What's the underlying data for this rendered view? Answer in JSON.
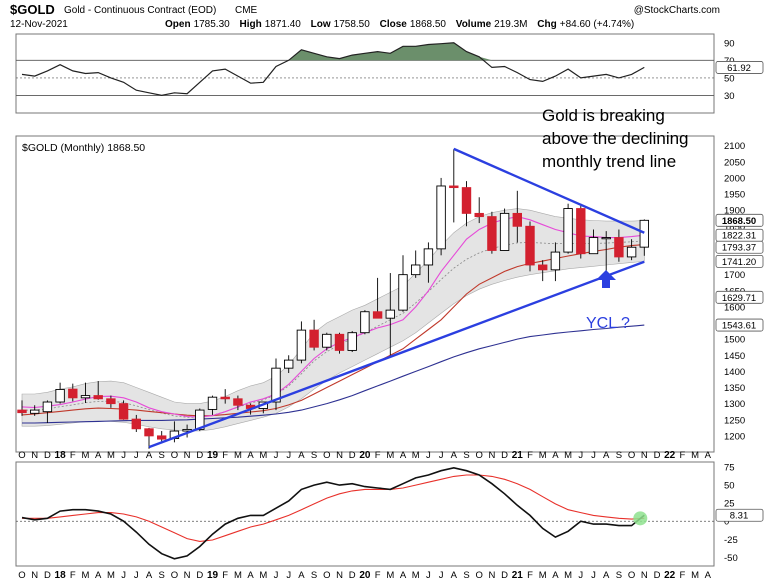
{
  "header": {
    "symbol": "$GOLD",
    "name": "Gold - Continuous Contract (EOD)",
    "exchange": "CME",
    "date": "12-Nov-2021",
    "open_label": "Open",
    "open": "1785.30",
    "high_label": "High",
    "high": "1871.40",
    "low_label": "Low",
    "low": "1758.50",
    "close_label": "Close",
    "close": "1868.50",
    "volume_label": "Volume",
    "volume": "219.3M",
    "chg_label": "Chg",
    "chg": "+84.60 (+4.74%)",
    "watermark": "@StockCharts.com"
  },
  "colors": {
    "up_candle": "#ffffff",
    "down_candle": "#d3202f",
    "ma_short": "#e64ad8",
    "ma_mid": "#c0392b",
    "ma_long": "#2e3192",
    "trendline": "#2b3fe0",
    "rsi_fill_high": "#6b8f6b",
    "rsi_fill_low": "#a86a6a",
    "macd": "#111111",
    "macd_signal": "#e8312b",
    "annotation": "#2b3fe0"
  },
  "chart_data": [
    {
      "type": "line",
      "panel": "rsi",
      "x": [
        "Oct-17",
        "Nov-17",
        "Dec-17",
        "Jan-18",
        "Feb-18",
        "Mar-18",
        "Apr-18",
        "May-18",
        "Jun-18",
        "Jul-18",
        "Aug-18",
        "Sep-18",
        "Oct-18",
        "Nov-18",
        "Dec-18",
        "Jan-19",
        "Feb-19",
        "Mar-19",
        "Apr-19",
        "May-19",
        "Jun-19",
        "Jul-19",
        "Aug-19",
        "Sep-19",
        "Oct-19",
        "Nov-19",
        "Dec-19",
        "Jan-20",
        "Feb-20",
        "Mar-20",
        "Apr-20",
        "May-20",
        "Jun-20",
        "Jul-20",
        "Aug-20",
        "Sep-20",
        "Oct-20",
        "Nov-20",
        "Dec-20",
        "Jan-21",
        "Feb-21",
        "Mar-21",
        "Apr-21",
        "May-21",
        "Jun-21",
        "Jul-21",
        "Aug-21",
        "Sep-21",
        "Oct-21",
        "Nov-21"
      ],
      "values": [
        54,
        52,
        58,
        65,
        58,
        55,
        56,
        50,
        45,
        36,
        33,
        30,
        33,
        32,
        45,
        58,
        60,
        52,
        44,
        45,
        63,
        70,
        82,
        78,
        74,
        72,
        76,
        78,
        80,
        78,
        86,
        86,
        88,
        89,
        90,
        80,
        74,
        62,
        63,
        56,
        48,
        46,
        52,
        60,
        50,
        52,
        54,
        50,
        54,
        61.92
      ],
      "ticks": [
        "90",
        "70",
        "50",
        "30"
      ],
      "ylim": [
        10,
        100
      ],
      "last_value": "61.92"
    },
    {
      "type": "candlestick",
      "title": "$GOLD (Monthly) 1868.50",
      "x": [
        "Oct-17",
        "Nov-17",
        "Dec-17",
        "Jan-18",
        "Feb-18",
        "Mar-18",
        "Apr-18",
        "May-18",
        "Jun-18",
        "Jul-18",
        "Aug-18",
        "Sep-18",
        "Oct-18",
        "Nov-18",
        "Dec-18",
        "Jan-19",
        "Feb-19",
        "Mar-19",
        "Apr-19",
        "May-19",
        "Jun-19",
        "Jul-19",
        "Aug-19",
        "Sep-19",
        "Oct-19",
        "Nov-19",
        "Dec-19",
        "Jan-20",
        "Feb-20",
        "Mar-20",
        "Apr-20",
        "May-20",
        "Jun-20",
        "Jul-20",
        "Aug-20",
        "Sep-20",
        "Oct-20",
        "Nov-20",
        "Dec-20",
        "Jan-21",
        "Feb-21",
        "Mar-21",
        "Apr-21",
        "May-21",
        "Jun-21",
        "Jul-21",
        "Aug-21",
        "Sep-21",
        "Oct-21",
        "Nov-21"
      ],
      "open": [
        1280,
        1270,
        1275,
        1305,
        1345,
        1318,
        1325,
        1315,
        1300,
        1252,
        1222,
        1200,
        1192,
        1215,
        1220,
        1282,
        1320,
        1315,
        1295,
        1285,
        1305,
        1410,
        1435,
        1528,
        1475,
        1515,
        1465,
        1520,
        1585,
        1565,
        1590,
        1700,
        1730,
        1780,
        1975,
        1970,
        1890,
        1880,
        1775,
        1890,
        1850,
        1730,
        1715,
        1770,
        1905,
        1765,
        1815,
        1815,
        1755,
        1785.3
      ],
      "high": [
        1310,
        1295,
        1310,
        1365,
        1362,
        1365,
        1370,
        1325,
        1310,
        1265,
        1225,
        1215,
        1245,
        1235,
        1285,
        1325,
        1345,
        1325,
        1300,
        1305,
        1440,
        1450,
        1555,
        1560,
        1520,
        1520,
        1525,
        1590,
        1690,
        1705,
        1760,
        1775,
        1800,
        2000,
        2090,
        1990,
        1940,
        1895,
        1905,
        1960,
        1865,
        1745,
        1800,
        1920,
        1920,
        1840,
        1835,
        1840,
        1810,
        1871.4
      ],
      "low": [
        1262,
        1262,
        1240,
        1300,
        1307,
        1302,
        1312,
        1287,
        1250,
        1212,
        1160,
        1182,
        1180,
        1195,
        1215,
        1265,
        1300,
        1280,
        1266,
        1270,
        1280,
        1395,
        1425,
        1465,
        1465,
        1455,
        1460,
        1515,
        1565,
        1450,
        1585,
        1690,
        1675,
        1760,
        1862,
        1850,
        1860,
        1765,
        1775,
        1800,
        1710,
        1680,
        1680,
        1765,
        1750,
        1765,
        1680,
        1740,
        1745,
        1758.5
      ],
      "close": [
        1272,
        1280,
        1305,
        1344,
        1318,
        1325,
        1315,
        1300,
        1252,
        1222,
        1200,
        1190,
        1215,
        1220,
        1280,
        1320,
        1315,
        1295,
        1285,
        1305,
        1410,
        1435,
        1528,
        1475,
        1515,
        1465,
        1520,
        1585,
        1565,
        1590,
        1700,
        1730,
        1780,
        1975,
        1970,
        1890,
        1880,
        1775,
        1890,
        1850,
        1730,
        1715,
        1770,
        1905,
        1765,
        1815,
        1815,
        1755,
        1785,
        1868.5
      ],
      "ma_short": [
        1290,
        1288,
        1292,
        1297,
        1305,
        1314,
        1322,
        1323,
        1318,
        1305,
        1287,
        1275,
        1268,
        1260,
        1258,
        1263,
        1275,
        1290,
        1305,
        1315,
        1330,
        1360,
        1400,
        1440,
        1470,
        1490,
        1505,
        1520,
        1535,
        1545,
        1560,
        1600,
        1650,
        1710,
        1760,
        1810,
        1840,
        1860,
        1872,
        1880,
        1870,
        1855,
        1840,
        1830,
        1820,
        1818,
        1815,
        1815,
        1818,
        1822.31
      ],
      "ma_mid": [
        1265,
        1268,
        1272,
        1276,
        1280,
        1284,
        1286,
        1285,
        1283,
        1280,
        1276,
        1272,
        1268,
        1264,
        1262,
        1263,
        1266,
        1270,
        1274,
        1278,
        1285,
        1296,
        1310,
        1330,
        1350,
        1370,
        1390,
        1410,
        1430,
        1450,
        1470,
        1500,
        1530,
        1560,
        1600,
        1640,
        1670,
        1690,
        1710,
        1725,
        1735,
        1742,
        1750,
        1758,
        1765,
        1772,
        1778,
        1785,
        1790,
        1793.37
      ],
      "ma_long": [
        1240,
        1240,
        1241,
        1242,
        1243,
        1244,
        1245,
        1246,
        1247,
        1248,
        1248,
        1248,
        1249,
        1250,
        1252,
        1254,
        1256,
        1258,
        1261,
        1264,
        1268,
        1273,
        1280,
        1290,
        1300,
        1312,
        1325,
        1340,
        1355,
        1370,
        1385,
        1400,
        1415,
        1430,
        1445,
        1458,
        1470,
        1480,
        1490,
        1500,
        1508,
        1513,
        1518,
        1522,
        1526,
        1530,
        1533,
        1537,
        1540,
        1543.61
      ],
      "band_upper": [
        1330,
        1330,
        1335,
        1345,
        1352,
        1362,
        1368,
        1370,
        1365,
        1350,
        1335,
        1320,
        1305,
        1300,
        1300,
        1308,
        1322,
        1340,
        1355,
        1365,
        1385,
        1420,
        1470,
        1520,
        1550,
        1570,
        1590,
        1605,
        1625,
        1645,
        1665,
        1705,
        1745,
        1790,
        1830,
        1860,
        1880,
        1892,
        1900,
        1905,
        1900,
        1890,
        1880,
        1875,
        1870,
        1868,
        1866,
        1866,
        1866,
        1868
      ],
      "band_lower": [
        1230,
        1230,
        1232,
        1236,
        1240,
        1244,
        1246,
        1245,
        1242,
        1236,
        1228,
        1222,
        1218,
        1215,
        1215,
        1220,
        1228,
        1238,
        1248,
        1258,
        1270,
        1290,
        1315,
        1345,
        1372,
        1395,
        1415,
        1435,
        1455,
        1475,
        1495,
        1520,
        1550,
        1580,
        1610,
        1635,
        1655,
        1670,
        1682,
        1692,
        1700,
        1706,
        1712,
        1718,
        1722,
        1726,
        1730,
        1734,
        1738,
        1741
      ],
      "trendlines": [
        {
          "from": [
            "Aug-18",
            1165
          ],
          "to": [
            "Nov-21",
            1740
          ]
        },
        {
          "from": [
            "Aug-20",
            2090
          ],
          "to": [
            "Nov-21",
            1830
          ]
        }
      ],
      "ylim": [
        1150,
        2130
      ],
      "ticks": [
        "2100",
        "2050",
        "2000",
        "1950",
        "1900",
        "1850",
        "1800",
        "1750",
        "1700",
        "1650",
        "1600",
        "1550",
        "1500",
        "1450",
        "1400",
        "1350",
        "1300",
        "1250",
        "1200"
      ],
      "value_tags": [
        {
          "label": "1868.50",
          "value": 1868.5,
          "bold": true
        },
        {
          "label": "1822.31",
          "value": 1822.31
        },
        {
          "label": "1793.37",
          "value": 1793.37
        },
        {
          "label": "1741.20",
          "value": 1741.2
        },
        {
          "label": "1629.71",
          "value": 1629.71
        },
        {
          "label": "1543.61",
          "value": 1543.61
        }
      ],
      "annotations": {
        "breakout_text": [
          "Gold is breaking",
          "above the declining",
          "monthly trend line"
        ],
        "ycl_text": "YCL ?"
      },
      "x_tick_labels": [
        "O",
        "N",
        "D",
        "18",
        "F",
        "M",
        "A",
        "M",
        "J",
        "J",
        "A",
        "S",
        "O",
        "N",
        "D",
        "19",
        "F",
        "M",
        "A",
        "M",
        "J",
        "J",
        "A",
        "S",
        "O",
        "N",
        "D",
        "20",
        "F",
        "M",
        "A",
        "M",
        "J",
        "J",
        "A",
        "S",
        "O",
        "N",
        "D",
        "21",
        "F",
        "M",
        "A",
        "M",
        "J",
        "J",
        "A",
        "S",
        "O",
        "N",
        "D",
        "22",
        "F",
        "M",
        "A"
      ]
    },
    {
      "type": "line",
      "panel": "macd",
      "x": [
        "Oct-17",
        "Nov-17",
        "Dec-17",
        "Jan-18",
        "Feb-18",
        "Mar-18",
        "Apr-18",
        "May-18",
        "Jun-18",
        "Jul-18",
        "Aug-18",
        "Sep-18",
        "Oct-18",
        "Nov-18",
        "Dec-18",
        "Jan-19",
        "Feb-19",
        "Mar-19",
        "Apr-19",
        "May-19",
        "Jun-19",
        "Jul-19",
        "Aug-19",
        "Sep-19",
        "Oct-19",
        "Nov-19",
        "Dec-19",
        "Jan-20",
        "Feb-20",
        "Mar-20",
        "Apr-20",
        "May-20",
        "Jun-20",
        "Jul-20",
        "Aug-20",
        "Sep-20",
        "Oct-20",
        "Nov-20",
        "Dec-20",
        "Jan-21",
        "Feb-21",
        "Mar-21",
        "Apr-21",
        "May-21",
        "Jun-21",
        "Jul-21",
        "Aug-21",
        "Sep-21",
        "Oct-21",
        "Nov-21"
      ],
      "series": [
        {
          "values": [
            5,
            2,
            4,
            14,
            16,
            16,
            14,
            10,
            0,
            -15,
            -32,
            -45,
            -52,
            -48,
            -35,
            -18,
            -4,
            4,
            8,
            8,
            18,
            28,
            44,
            50,
            54,
            50,
            52,
            48,
            46,
            44,
            52,
            60,
            64,
            70,
            74,
            70,
            64,
            52,
            38,
            22,
            8,
            -10,
            -22,
            -14,
            0,
            -4,
            -4,
            -6,
            -6,
            8.31
          ]
        },
        {
          "values": [
            4,
            4,
            4,
            6,
            8,
            10,
            12,
            12,
            10,
            6,
            0,
            -8,
            -16,
            -24,
            -28,
            -26,
            -20,
            -14,
            -8,
            -4,
            2,
            8,
            16,
            24,
            32,
            38,
            42,
            44,
            44,
            44,
            46,
            50,
            54,
            58,
            62,
            64,
            64,
            62,
            58,
            52,
            44,
            34,
            24,
            16,
            12,
            8,
            6,
            4,
            3,
            4
          ]
        }
      ],
      "ticks": [
        "75",
        "50",
        "25",
        "0",
        "-25",
        "-50"
      ],
      "ylim": [
        -62,
        82
      ],
      "last_value": "8.31",
      "x_tick_labels": [
        "O",
        "N",
        "D",
        "18",
        "F",
        "M",
        "A",
        "M",
        "J",
        "J",
        "A",
        "S",
        "O",
        "N",
        "D",
        "19",
        "F",
        "M",
        "A",
        "M",
        "J",
        "J",
        "A",
        "S",
        "O",
        "N",
        "D",
        "20",
        "F",
        "M",
        "A",
        "M",
        "J",
        "J",
        "A",
        "S",
        "O",
        "N",
        "D",
        "21",
        "F",
        "M",
        "A",
        "M",
        "J",
        "J",
        "A",
        "S",
        "O",
        "N",
        "D",
        "22",
        "F",
        "M",
        "A"
      ]
    }
  ]
}
